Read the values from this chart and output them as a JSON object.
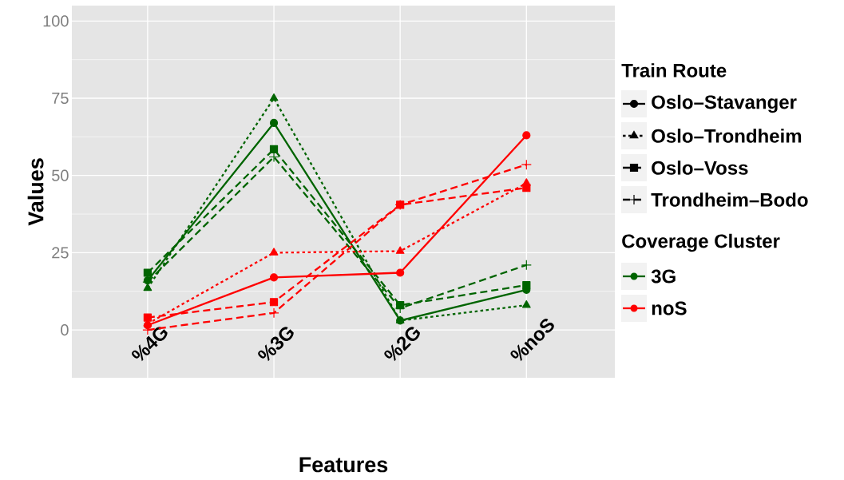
{
  "chart_data": {
    "type": "line",
    "xlabel": "Features",
    "ylabel": "Values",
    "legend_title": "Train Route",
    "categories": [
      "%4G",
      "%3G",
      "%2G",
      "%noS"
    ],
    "series": [
      {
        "color": "#006400",
        "marker": "circle",
        "line_style": "solid",
        "values": [
          16,
          67,
          3,
          13
        ]
      },
      {
        "color": "#006400",
        "marker": "triangle",
        "line_style": "dotted",
        "values": [
          13.5,
          75,
          3,
          8
        ]
      },
      {
        "color": "#006400",
        "marker": "square",
        "line_style": "dashed",
        "values": [
          18.5,
          58.5,
          8,
          14.5
        ]
      },
      {
        "color": "#006400",
        "marker": "cross",
        "line_style": "dashed",
        "values": [
          15.5,
          56,
          7,
          21
        ]
      },
      {
        "color": "#ff0000",
        "marker": "circle",
        "line_style": "solid",
        "values": [
          1.5,
          17,
          18.5,
          63
        ]
      },
      {
        "color": "#ff0000",
        "marker": "triangle",
        "line_style": "dotted",
        "values": [
          2,
          25,
          25.5,
          47.5
        ]
      },
      {
        "color": "#ff0000",
        "marker": "square",
        "line_style": "dashed",
        "values": [
          4,
          9,
          40.5,
          46
        ]
      },
      {
        "color": "#ff0000",
        "marker": "cross",
        "line_style": "dashed",
        "values": [
          0,
          5.5,
          40.5,
          53.5
        ]
      }
    ],
    "annotations": [
      "Oslo–Stavanger",
      "Oslo–Trondheim",
      "Oslo–Voss",
      "Trondheim–Bodo",
      "Coverage Cluster",
      "3G",
      "noS"
    ],
    "ylim": [
      -15.5,
      105
    ],
    "yticks": [
      0,
      25,
      50,
      75,
      100
    ],
    "grid": true
  }
}
